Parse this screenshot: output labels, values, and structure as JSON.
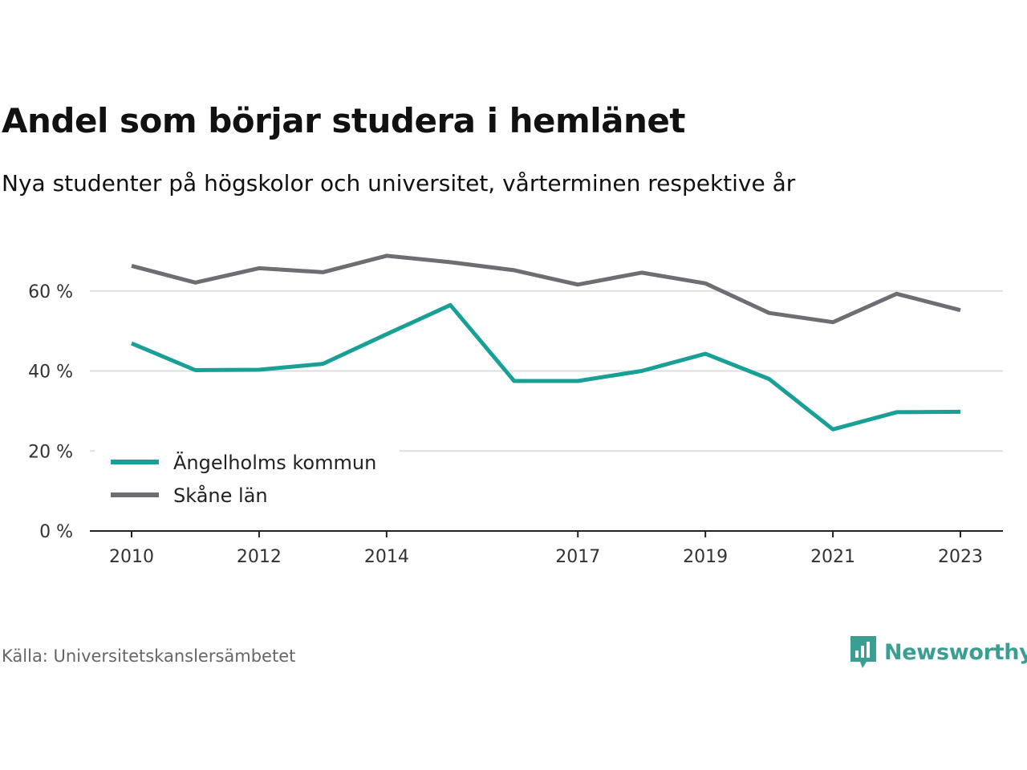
{
  "title": "Andel som börjar studera i hemlänet",
  "subtitle": "Nya studenter på högskolor och universitet, vårterminen respektive år",
  "source": "Källa: Universitetskanslersämbetet",
  "brand": {
    "name": "Newsworthy",
    "icon": "newsworthy-logo-icon",
    "color": "#3a9e93"
  },
  "chart_data": {
    "type": "line",
    "x": [
      2010,
      2011,
      2012,
      2013,
      2014,
      2015,
      2016,
      2017,
      2018,
      2019,
      2020,
      2021,
      2022,
      2023
    ],
    "x_ticks": [
      {
        "value": 2010,
        "label": "2010"
      },
      {
        "value": 2012,
        "label": "2012"
      },
      {
        "value": 2014,
        "label": "2014"
      },
      {
        "value": 2017,
        "label": "2017"
      },
      {
        "value": 2019,
        "label": "2019"
      },
      {
        "value": 2021,
        "label": "2021"
      },
      {
        "value": 2023,
        "label": "2023"
      }
    ],
    "y_ticks": [
      {
        "value": 0,
        "label": "0 %"
      },
      {
        "value": 20,
        "label": "20 %"
      },
      {
        "value": 40,
        "label": "40 %"
      },
      {
        "value": 60,
        "label": "60 %"
      }
    ],
    "ylim": [
      0,
      75
    ],
    "xlim": [
      2009.35,
      2023.7
    ],
    "grid": "horizontal",
    "legend_position": "bottom-left",
    "series": [
      {
        "name": "Ängelholms kommun",
        "color": "#19a096",
        "values": [
          46.9,
          40.2,
          40.3,
          41.8,
          49.2,
          56.5,
          37.5,
          37.5,
          40.0,
          44.3,
          38.0,
          25.4,
          29.7,
          29.8
        ]
      },
      {
        "name": "Skåne län",
        "color": "#6e6d73",
        "values": [
          66.3,
          62.1,
          65.7,
          64.7,
          68.8,
          67.2,
          65.2,
          61.6,
          64.6,
          61.9,
          54.5,
          52.2,
          59.3,
          55.2
        ]
      }
    ]
  }
}
